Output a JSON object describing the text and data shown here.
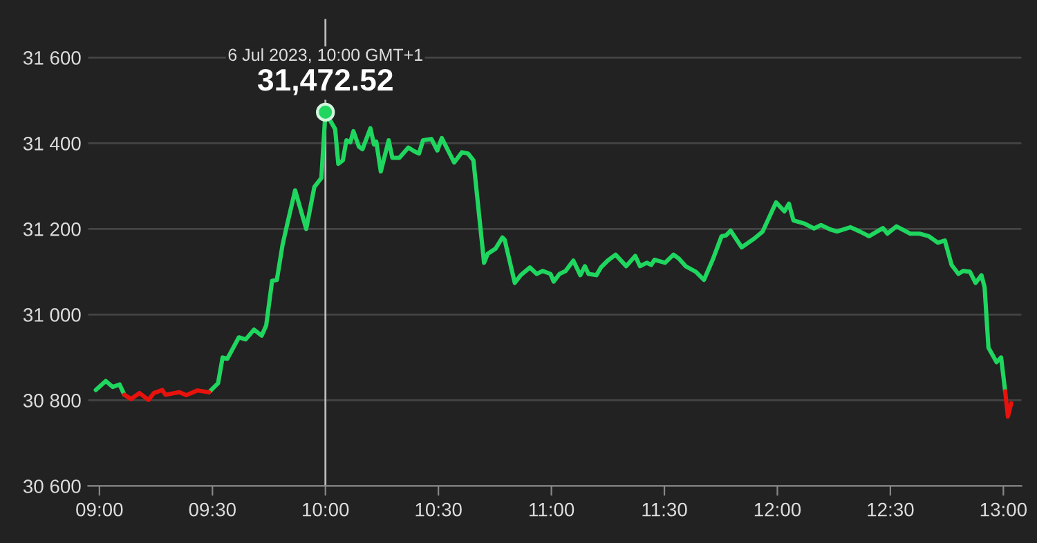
{
  "chart_data": {
    "type": "line",
    "x": [
      8.984,
      9.028,
      9.059,
      9.089,
      9.11,
      9.14,
      9.177,
      9.217,
      9.241,
      9.278,
      9.292,
      9.353,
      9.384,
      9.434,
      9.485,
      9.525,
      9.545,
      9.566,
      9.617,
      9.647,
      9.684,
      9.718,
      9.738,
      9.764,
      9.785,
      9.81,
      9.83,
      9.866,
      9.915,
      9.951,
      9.982,
      10.0,
      10.043,
      10.057,
      10.077,
      10.093,
      10.11,
      10.124,
      10.148,
      10.164,
      10.199,
      10.215,
      10.225,
      10.245,
      10.28,
      10.296,
      10.327,
      10.367,
      10.394,
      10.414,
      10.432,
      10.469,
      10.495,
      10.515,
      10.54,
      10.57,
      10.604,
      10.631,
      10.655,
      10.702,
      10.718,
      10.753,
      10.783,
      10.793,
      10.838,
      10.864,
      10.905,
      10.935,
      10.961,
      10.996,
      11.01,
      11.036,
      11.063,
      11.097,
      11.128,
      11.148,
      11.164,
      11.199,
      11.219,
      11.249,
      11.284,
      11.331,
      11.371,
      11.392,
      11.422,
      11.442,
      11.456,
      11.503,
      11.54,
      11.564,
      11.594,
      11.639,
      11.675,
      11.716,
      11.753,
      11.773,
      11.793,
      11.842,
      11.899,
      11.935,
      11.994,
      12.031,
      12.051,
      12.071,
      12.122,
      12.162,
      12.193,
      12.233,
      12.264,
      12.324,
      12.365,
      12.406,
      12.467,
      12.487,
      12.527,
      12.588,
      12.629,
      12.67,
      12.71,
      12.741,
      12.771,
      12.801,
      12.822,
      12.852,
      12.877,
      12.903,
      12.917,
      12.934,
      12.97,
      12.99,
      13.008,
      13.02,
      13.035
    ],
    "series": [
      {
        "color": "#1fd65f",
        "values": [
          30824,
          30845,
          30831,
          30837,
          30813,
          null,
          null,
          null,
          null,
          null,
          null,
          null,
          null,
          null,
          30819,
          30840,
          30900,
          30897,
          30947,
          30942,
          30965,
          30951,
          30975,
          31079,
          31081,
          31162,
          31209,
          31290,
          31200,
          31298,
          31319,
          31472.52,
          31433,
          31352,
          31360,
          31407,
          31402,
          31428,
          31392,
          31386,
          31435,
          31397,
          31404,
          31334,
          31407,
          31366,
          31366,
          31390,
          31381,
          31376,
          31407,
          31410,
          31383,
          31412,
          31386,
          31355,
          31379,
          31376,
          31360,
          31121,
          31142,
          31154,
          31180,
          31175,
          31074,
          31092,
          31110,
          31095,
          31102,
          31095,
          31077,
          31095,
          31102,
          31126,
          31092,
          31113,
          31095,
          31092,
          31110,
          31126,
          31140,
          31113,
          31137,
          31113,
          31121,
          31116,
          31128,
          31121,
          31140,
          31131,
          31113,
          31100,
          31081,
          31131,
          31183,
          31185,
          31196,
          31157,
          31178,
          31194,
          31262,
          31241,
          31259,
          31220,
          31212,
          31201,
          31209,
          31199,
          31194,
          31204,
          31194,
          31183,
          31202,
          31189,
          31206,
          31189,
          31189,
          31183,
          31168,
          31173,
          31116,
          31095,
          31102,
          31100,
          31074,
          31092,
          31064,
          30923,
          30889,
          30900,
          30821,
          null,
          null
        ]
      },
      {
        "color": "#e8120c",
        "values": [
          null,
          null,
          null,
          null,
          30813,
          30803,
          30817,
          30801,
          30817,
          30824,
          30813,
          30819,
          30812,
          30823,
          30819,
          null,
          null,
          null,
          null,
          null,
          null,
          null,
          null,
          null,
          null,
          null,
          null,
          null,
          null,
          null,
          null,
          null,
          null,
          null,
          null,
          null,
          null,
          null,
          null,
          null,
          null,
          null,
          null,
          null,
          null,
          null,
          null,
          null,
          null,
          null,
          null,
          null,
          null,
          null,
          null,
          null,
          null,
          null,
          null,
          null,
          null,
          null,
          null,
          null,
          null,
          null,
          null,
          null,
          null,
          null,
          null,
          null,
          null,
          null,
          null,
          null,
          null,
          null,
          null,
          null,
          null,
          null,
          null,
          null,
          null,
          null,
          null,
          null,
          null,
          null,
          null,
          null,
          null,
          null,
          null,
          null,
          null,
          null,
          null,
          null,
          null,
          null,
          null,
          null,
          null,
          null,
          null,
          null,
          null,
          null,
          null,
          null,
          null,
          null,
          null,
          null,
          null,
          null,
          null,
          null,
          null,
          null,
          null,
          null,
          null,
          null,
          null,
          null,
          null,
          null,
          30821,
          30762,
          30793
        ]
      },
      {
        "type": "scatter",
        "marker": "circle",
        "color": "#1fd65f",
        "x": [
          10
        ],
        "values": [
          31472.52
        ]
      }
    ],
    "xlim": [
      8.95,
      13.08
    ],
    "xticks": [
      {
        "value": 9,
        "label": "09:00"
      },
      {
        "value": 9.5,
        "label": "09:30"
      },
      {
        "value": 10,
        "label": "10:00"
      },
      {
        "value": 10.5,
        "label": "10:30"
      },
      {
        "value": 11,
        "label": "11:00"
      },
      {
        "value": 11.5,
        "label": "11:30"
      },
      {
        "value": 12,
        "label": "12:00"
      },
      {
        "value": 12.5,
        "label": "12:30"
      },
      {
        "value": 13,
        "label": "13:00"
      }
    ],
    "ylim": [
      30600,
      31690
    ],
    "yticks": [
      {
        "value": 30600,
        "label": "30 600"
      },
      {
        "value": 30800,
        "label": "30 800"
      },
      {
        "value": 31000,
        "label": "31 000"
      },
      {
        "value": 31200,
        "label": "31 200"
      },
      {
        "value": 31400,
        "label": "31 400"
      },
      {
        "value": 31600,
        "label": "31 600"
      }
    ],
    "grid": "y",
    "ref_lines": [
      {
        "axis": "x",
        "value": 10,
        "color": "#bbbbbb"
      }
    ],
    "annotations": [
      "6 Jul 2023, 10:00 GMT+1",
      {
        "text": "31,472.52",
        "x": 10,
        "y": 31472.52
      }
    ]
  }
}
